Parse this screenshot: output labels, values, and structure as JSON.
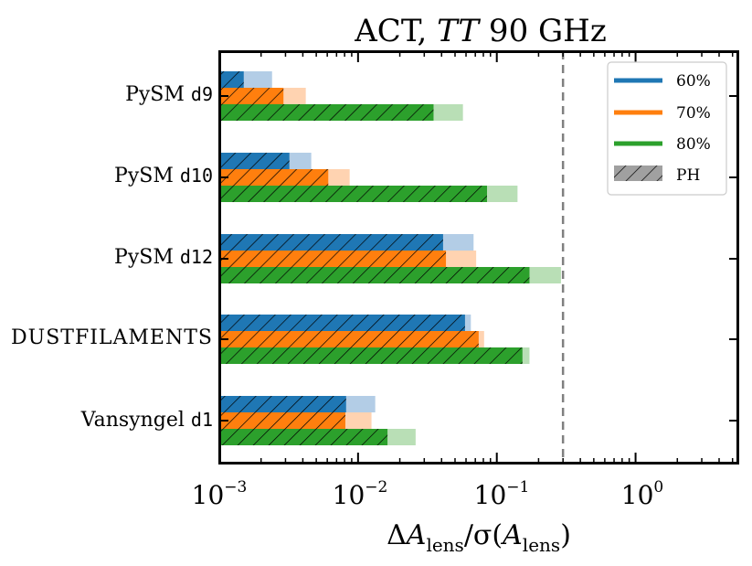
{
  "chart_data": {
    "type": "bar",
    "orientation": "horizontal",
    "title": {
      "prefix": "ACT, ",
      "italic": "TT",
      "suffix": " 90 GHz"
    },
    "xlabel": {
      "delta": "Δ",
      "a1": "A",
      "sub1": "lens",
      "mid": "/σ(",
      "a2": "A",
      "sub2": "lens",
      "close": ")"
    },
    "xscale": "log",
    "xlim": [
      0.001,
      5.5
    ],
    "x_ticks": [
      {
        "value": 0.001,
        "base": "10",
        "exp": "−3"
      },
      {
        "value": 0.01,
        "base": "10",
        "exp": "−2"
      },
      {
        "value": 0.1,
        "base": "10",
        "exp": "−1"
      },
      {
        "value": 1,
        "base": "10",
        "exp": "0"
      }
    ],
    "reference_line": {
      "value": 0.3,
      "style": "dashed",
      "color": "#808080"
    },
    "categories": [
      {
        "text": "PySM ",
        "code": "d9"
      },
      {
        "text": "PySM ",
        "code": "d10"
      },
      {
        "text": "PySM ",
        "code": "d12"
      },
      {
        "text": "DUSTFILAMENTS",
        "code": ""
      },
      {
        "text": "Vansyngel ",
        "code": "d1"
      }
    ],
    "series": [
      {
        "name": "60%",
        "color": "#1f77b4",
        "light": "#b3cde6",
        "values": [
          0.0024,
          0.0046,
          0.068,
          0.065,
          0.0133
        ],
        "ph_values": [
          0.0015,
          0.0032,
          0.041,
          0.059,
          0.0082
        ]
      },
      {
        "name": "70%",
        "color": "#ff7f0e",
        "light": "#ffd3b1",
        "values": [
          0.0042,
          0.0087,
          0.071,
          0.081,
          0.0125
        ],
        "ph_values": [
          0.0029,
          0.0061,
          0.043,
          0.074,
          0.0081
        ]
      },
      {
        "name": "80%",
        "color": "#2ca02c",
        "light": "#b9dfb6",
        "values": [
          0.057,
          0.141,
          0.29,
          0.172,
          0.026
        ],
        "ph_values": [
          0.035,
          0.085,
          0.172,
          0.153,
          0.0163
        ]
      }
    ],
    "legend": {
      "position": "top-right",
      "entries": [
        {
          "label": "60%",
          "kind": "line",
          "color": "#1f77b4"
        },
        {
          "label": "70%",
          "kind": "line",
          "color": "#ff7f0e"
        },
        {
          "label": "80%",
          "kind": "line",
          "color": "#2ca02c"
        },
        {
          "label": "PH",
          "kind": "hatch",
          "color": "#a0a0a0"
        }
      ]
    }
  }
}
